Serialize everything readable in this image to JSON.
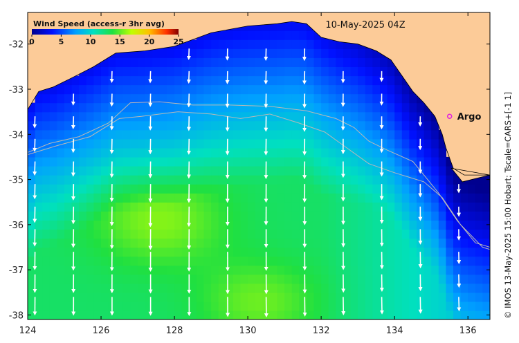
{
  "map": {
    "timestamp": "10-May-2025 04Z",
    "credit": "© IMOS 13-May-2025 15:00 Hobart; Tscale=CARS+[-1 1]",
    "lon_ticks": [
      "124",
      "126",
      "128",
      "130",
      "132",
      "134",
      "136"
    ],
    "lat_ticks": [
      "-32",
      "-33",
      "-34",
      "-35",
      "-36",
      "-37",
      "-38"
    ],
    "lon_range": [
      124,
      136.6
    ],
    "lat_range": [
      -38.1,
      -31.3
    ],
    "colorbar": {
      "title": "Wind Speed (access-r 3hr avg)",
      "ticks": [
        "0",
        "5",
        "10",
        "15",
        "20",
        "25"
      ],
      "min": 0,
      "max": 25
    },
    "station": {
      "label": "Argo",
      "lon": 135.5,
      "lat": -33.6,
      "color": "#e020e0"
    },
    "colors": {
      "land": "#fccb98",
      "arrow": "#ffffff",
      "contour": "#b8b8b8"
    }
  }
}
